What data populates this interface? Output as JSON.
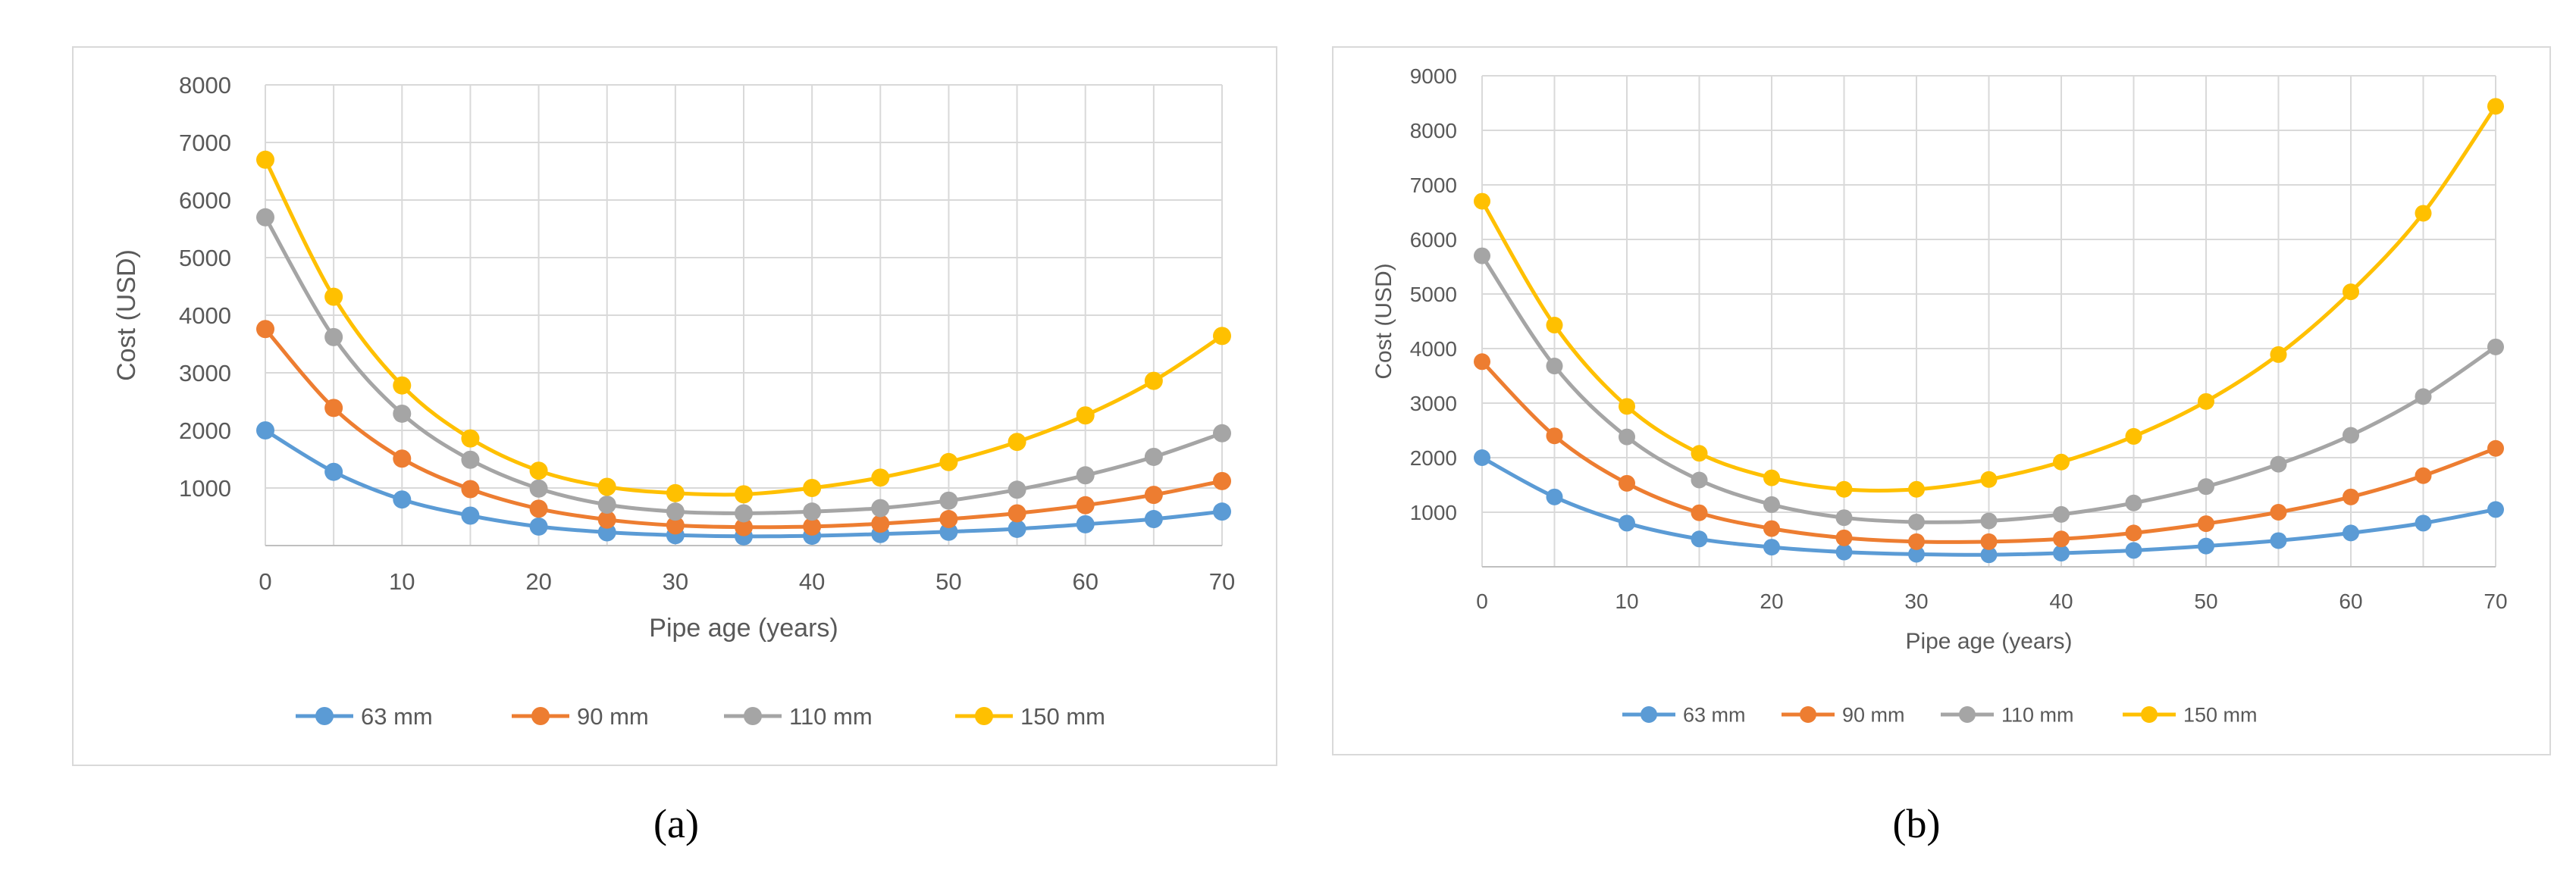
{
  "chart_data": [
    {
      "type": "line",
      "panel_label": "(a)",
      "title": "",
      "xlabel": "Pipe age (years)",
      "ylabel": "Cost (USD)",
      "xlim": [
        0,
        70
      ],
      "ylim": [
        0,
        8000
      ],
      "x_ticks": [
        0,
        10,
        20,
        30,
        40,
        50,
        60,
        70
      ],
      "y_ticks": [
        1000,
        2000,
        3000,
        4000,
        5000,
        6000,
        7000,
        8000
      ],
      "grid": true,
      "legend_position": "bottom",
      "x": [
        0,
        5,
        10,
        15,
        20,
        25,
        30,
        35,
        40,
        45,
        50,
        55,
        60,
        65,
        70
      ],
      "series": [
        {
          "name": "63 mm",
          "color": "#5B9BD5",
          "values": [
            2000,
            1280,
            800,
            520,
            330,
            230,
            180,
            160,
            170,
            200,
            240,
            290,
            370,
            460,
            590
          ]
        },
        {
          "name": "90 mm",
          "color": "#ED7D31",
          "values": [
            3760,
            2390,
            1510,
            980,
            640,
            450,
            350,
            320,
            330,
            380,
            460,
            560,
            700,
            880,
            1120
          ]
        },
        {
          "name": "110 mm",
          "color": "#A5A5A5",
          "values": [
            5700,
            3620,
            2290,
            1490,
            990,
            710,
            590,
            560,
            590,
            650,
            780,
            970,
            1220,
            1540,
            1950
          ]
        },
        {
          "name": "150 mm",
          "color": "#FFC000",
          "values": [
            6700,
            4320,
            2780,
            1860,
            1300,
            1020,
            910,
            890,
            1000,
            1180,
            1450,
            1800,
            2260,
            2860,
            3640
          ]
        }
      ]
    },
    {
      "type": "line",
      "panel_label": "(b)",
      "title": "",
      "xlabel": "Pipe age (years)",
      "ylabel": "Cost (USD)",
      "xlim": [
        0,
        70
      ],
      "ylim": [
        0,
        9000
      ],
      "x_ticks": [
        0,
        10,
        20,
        30,
        40,
        50,
        60,
        70
      ],
      "y_ticks": [
        1000,
        2000,
        3000,
        4000,
        5000,
        6000,
        7000,
        8000,
        9000
      ],
      "grid": true,
      "legend_position": "bottom",
      "x": [
        0,
        5,
        10,
        15,
        20,
        25,
        30,
        35,
        40,
        45,
        50,
        55,
        60,
        65,
        70
      ],
      "series": [
        {
          "name": "63 mm",
          "color": "#5B9BD5",
          "values": [
            2000,
            1280,
            800,
            510,
            360,
            270,
            230,
            220,
            250,
            300,
            380,
            480,
            620,
            800,
            1050
          ]
        },
        {
          "name": "90 mm",
          "color": "#ED7D31",
          "values": [
            3760,
            2400,
            1530,
            990,
            700,
            530,
            460,
            460,
            510,
            620,
            790,
            1000,
            1280,
            1670,
            2170
          ]
        },
        {
          "name": "110 mm",
          "color": "#A5A5A5",
          "values": [
            5700,
            3680,
            2380,
            1590,
            1140,
            900,
            820,
            840,
            960,
            1170,
            1470,
            1880,
            2410,
            3120,
            4030
          ]
        },
        {
          "name": "150 mm",
          "color": "#FFC000",
          "values": [
            6700,
            4430,
            2940,
            2080,
            1630,
            1420,
            1420,
            1600,
            1920,
            2390,
            3030,
            3890,
            5040,
            6480,
            8440
          ]
        }
      ]
    }
  ]
}
